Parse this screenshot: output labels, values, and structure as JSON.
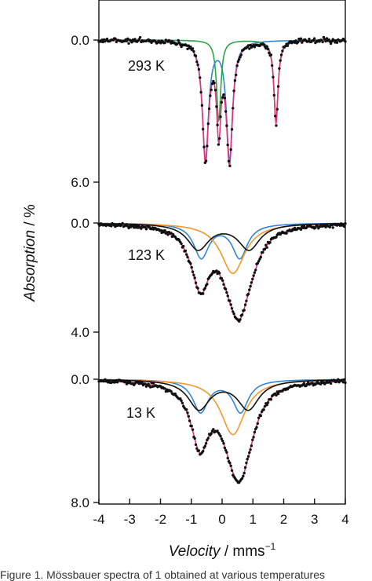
{
  "chart_data": {
    "type": "scatter",
    "title": "",
    "xlabel_italic": "Velocity",
    "xlabel_unit": " / mms",
    "xlabel_sup": "−1",
    "ylabel_italic": "Absorption",
    "ylabel_unit": " / %",
    "xlim": [
      -4,
      4
    ],
    "x_ticks": [
      "-4",
      "-3",
      "-2",
      "-1",
      "0",
      "1",
      "2",
      "3",
      "4"
    ],
    "series_colors": {
      "data": "#111111",
      "fit": "#e8317a",
      "blue": "#2e86d8",
      "green": "#2aa34a",
      "orange": "#f5962a",
      "black": "#111111"
    },
    "panels": [
      {
        "temperature": "293 K",
        "ylim": [
          0.0,
          6.0
        ],
        "y_tick_labels": [
          "0.0",
          "6.0"
        ],
        "components": [
          {
            "name": "blue",
            "color": "#2e86d8",
            "doublet": true,
            "center": -0.15,
            "split": 0.78,
            "depth": 5.0,
            "width": 0.24
          },
          {
            "name": "green",
            "color": "#2aa34a",
            "doublet": true,
            "center": 0.82,
            "split": 1.86,
            "depth": 3.5,
            "width": 0.16
          }
        ]
      },
      {
        "temperature": "123 K",
        "ylim": [
          0.0,
          4.0
        ],
        "y_tick_labels": [
          "0.0",
          "4.0"
        ],
        "components": [
          {
            "name": "blue",
            "color": "#2e86d8",
            "doublet": true,
            "center": -0.05,
            "split": 1.25,
            "depth": 1.25,
            "width": 0.6
          },
          {
            "name": "orange",
            "color": "#f5962a",
            "doublet": false,
            "center": 0.35,
            "split": 0,
            "depth": 1.85,
            "width": 0.95
          },
          {
            "name": "black",
            "color": "#111111",
            "doublet": true,
            "center": 0.05,
            "split": 1.65,
            "depth": 0.95,
            "width": 0.85
          }
        ]
      },
      {
        "temperature": "13 K",
        "ylim": [
          0.0,
          8.0
        ],
        "y_tick_labels": [
          "0.0",
          "8.0"
        ],
        "components": [
          {
            "name": "blue",
            "color": "#2e86d8",
            "doublet": true,
            "center": -0.05,
            "split": 1.3,
            "depth": 2.1,
            "width": 0.6
          },
          {
            "name": "orange",
            "color": "#f5962a",
            "doublet": false,
            "center": 0.35,
            "split": 0,
            "depth": 3.6,
            "width": 0.95
          },
          {
            "name": "black",
            "color": "#111111",
            "doublet": true,
            "center": 0.05,
            "split": 1.6,
            "depth": 1.9,
            "width": 0.85
          }
        ]
      }
    ]
  },
  "caption": "Figure 1. Mössbauer spectra of 1 obtained at various temperatures"
}
